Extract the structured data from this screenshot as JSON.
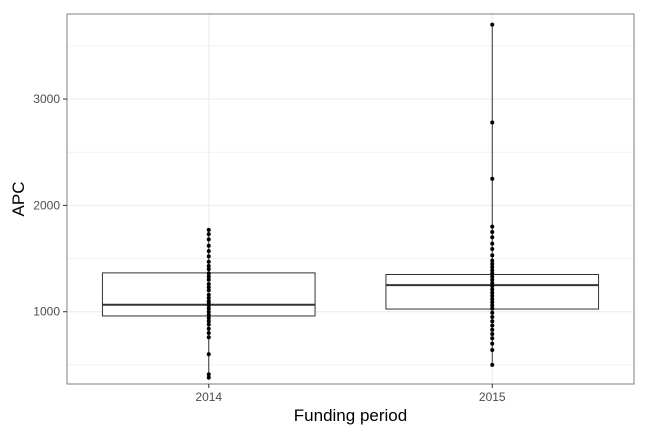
{
  "chart_data": {
    "type": "box",
    "title": "",
    "xlabel": "Funding period",
    "ylabel": "APC",
    "categories": [
      "2014",
      "2015"
    ],
    "ylim": [
      320,
      3800
    ],
    "yticks": [
      1000,
      2000,
      3000
    ],
    "grid": true,
    "boxes": [
      {
        "category": "2014",
        "lower_whisker": 380,
        "q1": 960,
        "median": 1065,
        "q3": 1365,
        "upper_whisker": 1770
      },
      {
        "category": "2015",
        "lower_whisker": 500,
        "q1": 1025,
        "median": 1250,
        "q3": 1350,
        "upper_whisker": 3700
      }
    ],
    "points": [
      {
        "category": "2014",
        "values": [
          380,
          410,
          600,
          760,
          800,
          840,
          880,
          910,
          940,
          970,
          1000,
          1030,
          1060,
          1080,
          1100,
          1130,
          1160,
          1200,
          1230,
          1260,
          1300,
          1330,
          1360,
          1400,
          1430,
          1470,
          1520,
          1570,
          1620,
          1680,
          1730,
          1770
        ]
      },
      {
        "category": "2015",
        "values": [
          500,
          640,
          700,
          750,
          790,
          830,
          870,
          910,
          950,
          990,
          1030,
          1060,
          1090,
          1120,
          1150,
          1180,
          1210,
          1240,
          1270,
          1300,
          1330,
          1360,
          1390,
          1420,
          1450,
          1480,
          1530,
          1590,
          1640,
          1700,
          1750,
          1800,
          2250,
          2780,
          3700
        ]
      }
    ]
  },
  "colors": {
    "panel_border": "#7f7f7f",
    "grid": "#ebebeb",
    "box_line": "#333333",
    "point": "#000000"
  }
}
